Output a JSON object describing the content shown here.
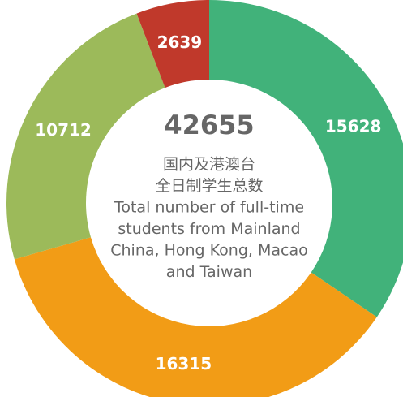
{
  "chart_data": {
    "type": "donut",
    "center_value": "42655",
    "center_label": [
      "国内及港澳台",
      "全日制学生总数",
      "Total number of full-time",
      "students from Mainland",
      "China, Hong Kong, Macao",
      "and Taiwan"
    ],
    "categories": [
      null,
      null,
      null,
      null
    ],
    "values": [
      15628,
      16315,
      10712,
      2639
    ],
    "colors": [
      "#41b27a",
      "#f29c16",
      "#9cba5a",
      "#c0392b"
    ]
  }
}
